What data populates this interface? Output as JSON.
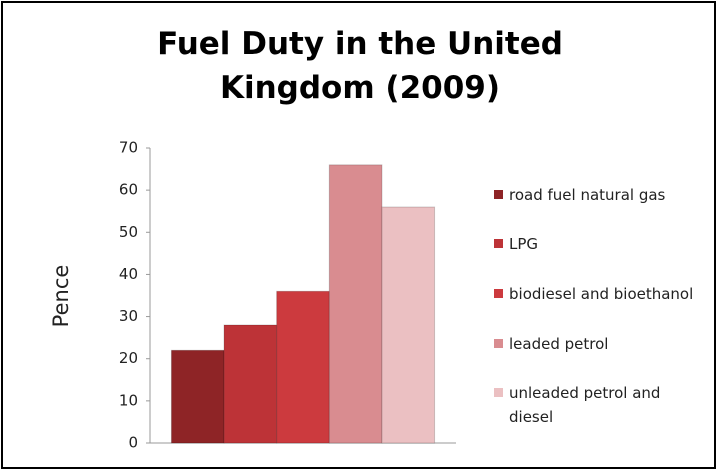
{
  "chart_data": {
    "type": "bar",
    "title": "Fuel Duty in the United Kingdom (2009)",
    "y_label": "Pence",
    "categories": [
      null
    ],
    "series": [
      {
        "name": "road fuel natural gas",
        "color": "#8e2426",
        "values": [
          22
        ]
      },
      {
        "name": "LPG",
        "color": "#bd3337",
        "values": [
          28
        ]
      },
      {
        "name": "biodiesel and bioethanol",
        "color": "#cc3a3e",
        "values": [
          36
        ]
      },
      {
        "name": "leaded petrol",
        "color": "#d98c90",
        "values": [
          66
        ]
      },
      {
        "name": "unleaded petrol and diesel",
        "color": "#ebc0c2",
        "values": [
          56
        ]
      }
    ],
    "ylim": [
      0,
      70
    ],
    "yticks": [
      0,
      10,
      20,
      30,
      40,
      50,
      60,
      70
    ],
    "grid": false,
    "legend": "right"
  }
}
